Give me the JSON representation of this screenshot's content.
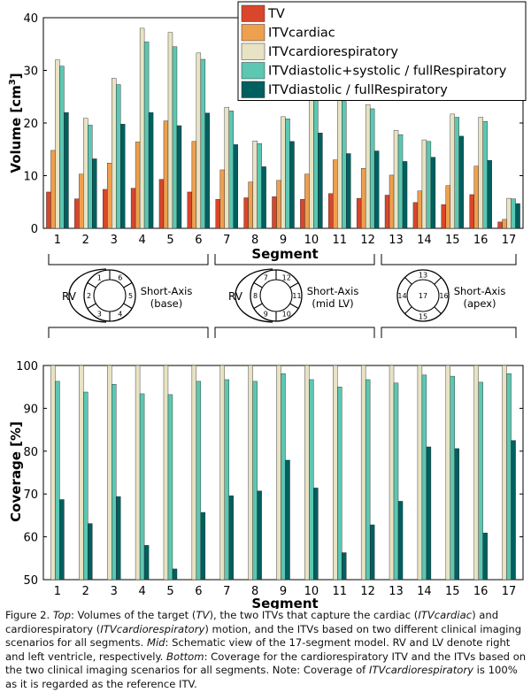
{
  "colors": {
    "TV": "#d9462b",
    "ITVcardiac": "#eea04e",
    "ITVcardiorespiratory": "#e8e3c4",
    "ITVdiastolic+systolic / fullRespiratory": "#5cc7b2",
    "ITVdiastolic / fullRespiratory": "#005f5f"
  },
  "chart_data": [
    {
      "type": "bar",
      "ylabel": "Volume [cm³]",
      "ylabel_main": "Volume [cm",
      "ylabel_sup": "3",
      "ylabel_end": "]",
      "xlabel": "Segment",
      "ylim": [
        0,
        40
      ],
      "yticks": [
        "0",
        "10",
        "20",
        "30",
        "40"
      ],
      "categories": [
        "1",
        "2",
        "3",
        "4",
        "5",
        "6",
        "7",
        "8",
        "9",
        "10",
        "11",
        "12",
        "13",
        "14",
        "15",
        "16",
        "17"
      ],
      "legend_position": "top-right",
      "series": [
        {
          "name": "TV",
          "values": [
            6.9,
            5.6,
            7.4,
            7.6,
            9.3,
            6.9,
            5.5,
            5.8,
            6.0,
            5.5,
            6.6,
            5.7,
            6.3,
            4.9,
            4.5,
            6.4,
            1.2
          ]
        },
        {
          "name": "ITVcardiac",
          "values": [
            14.8,
            10.3,
            12.4,
            16.4,
            20.4,
            16.5,
            11.1,
            8.8,
            9.1,
            10.3,
            13.0,
            11.4,
            10.1,
            7.1,
            8.1,
            11.8,
            1.7
          ]
        },
        {
          "name": "ITVcardiorespiratory",
          "values": [
            32.0,
            20.9,
            28.5,
            38.0,
            37.2,
            33.3,
            23.0,
            16.6,
            21.2,
            25.6,
            25.4,
            23.5,
            18.6,
            16.8,
            21.7,
            21.1,
            5.7
          ]
        },
        {
          "name": "ITVdiastolic+systolic / fullRespiratory",
          "values": [
            30.8,
            19.6,
            27.3,
            35.4,
            34.5,
            32.1,
            22.3,
            16.1,
            20.8,
            24.6,
            24.1,
            22.7,
            17.8,
            16.5,
            21.1,
            20.3,
            5.6
          ]
        },
        {
          "name": "ITVdiastolic / fullRespiratory",
          "values": [
            22.0,
            13.2,
            19.8,
            22.0,
            19.5,
            21.9,
            15.9,
            11.7,
            16.5,
            18.1,
            14.2,
            14.7,
            12.7,
            13.5,
            17.5,
            12.9,
            4.7
          ]
        }
      ]
    },
    {
      "type": "bar",
      "ylabel": "Coverage [%]",
      "xlabel": "Segment",
      "ylim": [
        50,
        100
      ],
      "yticks": [
        "50",
        "60",
        "70",
        "80",
        "90",
        "100"
      ],
      "categories": [
        "1",
        "2",
        "3",
        "4",
        "5",
        "6",
        "7",
        "8",
        "9",
        "10",
        "11",
        "12",
        "13",
        "14",
        "15",
        "16",
        "17"
      ],
      "series": [
        {
          "name": "ITVcardiorespiratory",
          "values": [
            100,
            100,
            100,
            100,
            100,
            100,
            100,
            100,
            100,
            100,
            100,
            100,
            100,
            100,
            100,
            100,
            100
          ]
        },
        {
          "name": "ITVdiastolic+systolic / fullRespiratory",
          "values": [
            96.3,
            93.8,
            95.6,
            93.4,
            93.2,
            96.3,
            96.7,
            96.3,
            98.1,
            96.7,
            95.0,
            96.7,
            95.9,
            97.8,
            97.5,
            96.1,
            98.1
          ]
        },
        {
          "name": "ITVdiastolic / fullRespiratory",
          "values": [
            68.7,
            63.1,
            69.4,
            58.0,
            52.5,
            65.7,
            69.6,
            70.7,
            77.9,
            71.4,
            56.3,
            62.8,
            68.3,
            81.0,
            80.6,
            60.9,
            82.5
          ]
        }
      ]
    }
  ],
  "schematic": {
    "panels": [
      {
        "label": "Short-Axis",
        "sublabel": "(base)",
        "rv_label": "RV",
        "segments": [
          "1",
          "2",
          "3",
          "4",
          "5",
          "6"
        ]
      },
      {
        "label": "Short-Axis",
        "sublabel": "(mid LV)",
        "rv_label": "RV",
        "segments": [
          "7",
          "8",
          "9",
          "10",
          "11",
          "12"
        ]
      },
      {
        "label": "Short-Axis",
        "sublabel": "(apex)",
        "segments": [
          "13",
          "14",
          "15",
          "16"
        ],
        "center": "17"
      }
    ]
  },
  "caption": {
    "fig_label": "Figure 2.",
    "top_label": "Top",
    "t1": ": Volumes of the target (",
    "i1": "TV",
    "t2": "), the two ITVs that capture the cardiac (",
    "i2": "ITVcardiac",
    "t3": ") and cardiorespiratory (",
    "i3": "ITVcardiorespiratory",
    "t4": ") motion, and the ITVs based on two different clinical imaging scenarios for all segments. ",
    "mid_label": "Mid",
    "t5": ": Schematic view of the 17-segment model. RV and LV denote right and left ventricle, respectively. ",
    "bottom_label": "Bottom",
    "t6": ": Coverage for the cardiorespiratory ITV and the ITVs based on the two clinical imaging scenarios for all segments. Note: Coverage of ",
    "i4": "ITVcardiorespiratory",
    "t7": " is 100% as it is regarded as the reference ITV."
  }
}
